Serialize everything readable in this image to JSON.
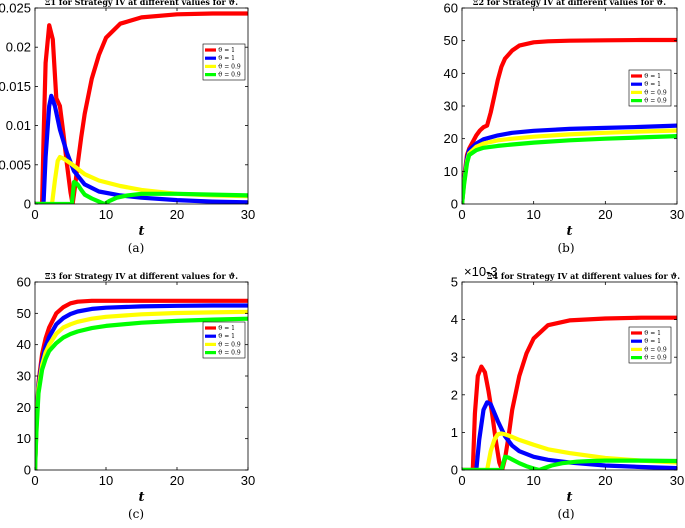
{
  "figure": {
    "chart_data": [
      {
        "type": "line",
        "panel": "a",
        "title": "Ξ1 for Strategy IV at different values for ϑ.",
        "caption": "(a)",
        "xlabel": "t",
        "ylabel": "",
        "xlim": [
          0,
          30
        ],
        "ylim": [
          0,
          0.025
        ],
        "xticks": [
          "0",
          "10",
          "20",
          "30"
        ],
        "yticks": [
          "0",
          "0.005",
          "0.01",
          "0.015",
          "0.02",
          "0.025"
        ],
        "multiplier": "",
        "legend_position": "top-right",
        "grid": false,
        "series": [
          {
            "name": "ϑ = 1",
            "color": "#ff0000",
            "x": [
              0,
              1,
              1.2,
              1.5,
              2,
              2.5,
              3,
              3.5,
              4,
              4.5,
              5,
              5.3,
              5.6,
              6,
              6.5,
              7,
              8,
              9,
              10,
              12,
              15,
              20,
              25,
              30
            ],
            "y": [
              0,
              0,
              0.008,
              0.018,
              0.0228,
              0.021,
              0.0135,
              0.0125,
              0.009,
              0.005,
              0.0015,
              0,
              0.002,
              0.005,
              0.0085,
              0.0115,
              0.016,
              0.019,
              0.0212,
              0.023,
              0.0238,
              0.0242,
              0.0243,
              0.0243
            ]
          },
          {
            "name": "ϑ = 1",
            "color": "#0000ff",
            "x": [
              0,
              1.2,
              1.5,
              2,
              2.3,
              2.8,
              3.5,
              4.5,
              5.5,
              7,
              9,
              12,
              15,
              20,
              25,
              30
            ],
            "y": [
              0,
              0,
              0.006,
              0.0125,
              0.0138,
              0.0125,
              0.0095,
              0.0065,
              0.0042,
              0.0025,
              0.0016,
              0.0011,
              0.0008,
              0.0005,
              0.0003,
              0.0002
            ]
          },
          {
            "name": "ϑ = 0.9",
            "color": "#ffff00",
            "x": [
              0,
              2.4,
              2.8,
              3.2,
              3.5,
              4,
              5,
              6,
              7,
              9,
              12,
              15,
              20,
              25,
              30
            ],
            "y": [
              0,
              0,
              0.003,
              0.0055,
              0.006,
              0.0058,
              0.0052,
              0.0045,
              0.0038,
              0.003,
              0.0023,
              0.0018,
              0.0013,
              0.0011,
              0.001
            ]
          },
          {
            "name": "ϑ = 0.9",
            "color": "#00ff00",
            "x": [
              0,
              5.2,
              5.5,
              6,
              6.5,
              7,
              8,
              9,
              9.8,
              10.5,
              11.5,
              13,
              15,
              20,
              25,
              30
            ],
            "y": [
              0,
              0,
              0.0028,
              0.0025,
              0.0018,
              0.0012,
              0.0007,
              0.0003,
              0,
              0.0004,
              0.0008,
              0.0011,
              0.0013,
              0.0013,
              0.0012,
              0.0011
            ]
          }
        ]
      },
      {
        "type": "line",
        "panel": "b",
        "title": "Ξ2 for Strategy IV at different values for ϑ.",
        "caption": "(b)",
        "xlabel": "t",
        "ylabel": "",
        "xlim": [
          0,
          30
        ],
        "ylim": [
          0,
          60
        ],
        "xticks": [
          "0",
          "10",
          "20",
          "30"
        ],
        "yticks": [
          "0",
          "10",
          "20",
          "30",
          "40",
          "50",
          "60"
        ],
        "multiplier": "",
        "legend_position": "top-right",
        "grid": false,
        "series": [
          {
            "name": "ϑ = 1",
            "color": "#ff0000",
            "x": [
              0,
              0.3,
              0.7,
              1,
              1.5,
              2,
              2.5,
              3,
              3.5,
              4,
              4.5,
              5,
              5.5,
              6,
              7,
              8,
              10,
              12,
              15,
              20,
              25,
              30
            ],
            "y": [
              0,
              8,
              15,
              17,
              19,
              21,
              22.5,
              23.5,
              24,
              28,
              33,
              38,
              42,
              44.5,
              47,
              48.5,
              49.5,
              49.8,
              50,
              50.1,
              50.2,
              50.2
            ]
          },
          {
            "name": "ϑ = 1",
            "color": "#0000ff",
            "x": [
              0,
              0.3,
              0.7,
              1,
              2,
              3,
              5,
              7,
              10,
              15,
              20,
              25,
              30
            ],
            "y": [
              0,
              7,
              14,
              16.5,
              18.5,
              19.8,
              21,
              21.8,
              22.4,
              23,
              23.3,
              23.6,
              24
            ]
          },
          {
            "name": "ϑ = 0.9",
            "color": "#ffff00",
            "x": [
              0,
              0.3,
              0.7,
              1,
              2,
              3,
              5,
              7,
              10,
              15,
              20,
              25,
              30
            ],
            "y": [
              0,
              6.5,
              13,
              15.5,
              17.5,
              18.5,
              19.5,
              20,
              20.6,
              21.3,
              21.8,
              22.2,
              22.5
            ]
          },
          {
            "name": "ϑ = 0.9",
            "color": "#00ff00",
            "x": [
              0,
              0.3,
              0.7,
              1,
              2,
              3,
              5,
              7,
              10,
              15,
              20,
              25,
              30
            ],
            "y": [
              0,
              6,
              12.5,
              15,
              16.5,
              17.2,
              17.8,
              18.2,
              18.8,
              19.5,
              20,
              20.4,
              20.8
            ]
          }
        ]
      },
      {
        "type": "line",
        "panel": "c",
        "title": "Ξ3 for Strategy IV at different values for ϑ.",
        "caption": "(c)",
        "xlabel": "t",
        "ylabel": "",
        "xlim": [
          0,
          30
        ],
        "ylim": [
          0,
          60
        ],
        "xticks": [
          "0",
          "10",
          "20",
          "30"
        ],
        "yticks": [
          "0",
          "10",
          "20",
          "30",
          "40",
          "50",
          "60"
        ],
        "multiplier": "",
        "legend_position": "right",
        "grid": false,
        "series": [
          {
            "name": "ϑ = 1",
            "color": "#ff0000",
            "x": [
              0,
              0.2,
              0.5,
              1,
              1.5,
              2,
              3,
              4,
              5,
              6,
              8,
              10,
              15,
              20,
              25,
              30
            ],
            "y": [
              0,
              15,
              28,
              37,
              42,
              45.5,
              50,
              52,
              53.2,
              53.7,
              54,
              54,
              54,
              54,
              54,
              54
            ]
          },
          {
            "name": "ϑ = 1",
            "color": "#0000ff",
            "x": [
              0,
              0.2,
              0.5,
              1,
              1.5,
              2,
              3,
              4,
              5,
              6,
              8,
              10,
              15,
              20,
              25,
              30
            ],
            "y": [
              0,
              14,
              27,
              35,
              39.5,
              42.5,
              46.5,
              48.5,
              49.8,
              50.6,
              51.4,
              51.8,
              52.2,
              52.4,
              52.5,
              52.5
            ]
          },
          {
            "name": "ϑ = 0.9",
            "color": "#ffff00",
            "x": [
              0,
              0.2,
              0.5,
              1,
              1.5,
              2,
              3,
              4,
              5,
              6,
              8,
              10,
              15,
              20,
              25,
              30
            ],
            "y": [
              0,
              13,
              26,
              33.5,
              37.5,
              40,
              43.5,
              45.5,
              46.5,
              47.3,
              48.3,
              48.9,
              49.7,
              50.1,
              50.3,
              50.5
            ]
          },
          {
            "name": "ϑ = 0.9",
            "color": "#00ff00",
            "x": [
              0,
              0.2,
              0.5,
              1,
              1.5,
              2,
              3,
              4,
              5,
              6,
              8,
              10,
              15,
              20,
              25,
              30
            ],
            "y": [
              0,
              12,
              24.5,
              32,
              35.5,
              38,
              40.5,
              42.3,
              43.4,
              44.2,
              45.3,
              46,
              47,
              47.6,
              48,
              48.3
            ]
          }
        ]
      },
      {
        "type": "line",
        "panel": "d",
        "title": "Ξ4 for Strategy IV at different values for ϑ.",
        "caption": "(d)",
        "xlabel": "t",
        "ylabel": "",
        "xlim": [
          0,
          30
        ],
        "ylim": [
          0,
          5
        ],
        "xticks": [
          "0",
          "10",
          "20",
          "30"
        ],
        "yticks": [
          "0",
          "1",
          "2",
          "3",
          "4",
          "5"
        ],
        "multiplier": "×10-3",
        "legend_position": "right",
        "grid": false,
        "series": [
          {
            "name": "ϑ = 1",
            "color": "#ff0000",
            "x": [
              0,
              1.5,
              1.8,
              2.2,
              2.7,
              3.2,
              3.7,
              4.2,
              4.7,
              5.2,
              5.6,
              6,
              6.5,
              7,
              8,
              9,
              10,
              12,
              15,
              20,
              25,
              30
            ],
            "y": [
              0,
              0,
              1.5,
              2.5,
              2.75,
              2.6,
              2.1,
              1.5,
              0.8,
              0.2,
              0,
              0.3,
              0.9,
              1.6,
              2.5,
              3.1,
              3.5,
              3.85,
              3.98,
              4.03,
              4.05,
              4.05
            ]
          },
          {
            "name": "ϑ = 1",
            "color": "#0000ff",
            "x": [
              0,
              2,
              2.4,
              3,
              3.5,
              4,
              5,
              6,
              7,
              8,
              10,
              12,
              15,
              20,
              25,
              30
            ],
            "y": [
              0,
              0,
              0.8,
              1.6,
              1.8,
              1.75,
              1.3,
              0.9,
              0.65,
              0.5,
              0.35,
              0.27,
              0.2,
              0.12,
              0.08,
              0.05
            ]
          },
          {
            "name": "ϑ = 0.9",
            "color": "#ffff00",
            "x": [
              0,
              3.5,
              4,
              4.5,
              5,
              5.5,
              6,
              7,
              8,
              10,
              12,
              15,
              20,
              25,
              30
            ],
            "y": [
              0,
              0,
              0.5,
              0.8,
              0.95,
              0.97,
              0.95,
              0.88,
              0.8,
              0.67,
              0.55,
              0.45,
              0.32,
              0.25,
              0.2
            ]
          },
          {
            "name": "ϑ = 0.9",
            "color": "#00ff00",
            "x": [
              0,
              5.5,
              6,
              6.5,
              7,
              8,
              9,
              10,
              10.8,
              11.5,
              12.5,
              14,
              16,
              18,
              20,
              25,
              30
            ],
            "y": [
              0,
              0,
              0.35,
              0.33,
              0.28,
              0.18,
              0.1,
              0.04,
              0,
              0.05,
              0.12,
              0.18,
              0.22,
              0.24,
              0.25,
              0.25,
              0.24
            ]
          }
        ]
      }
    ]
  }
}
